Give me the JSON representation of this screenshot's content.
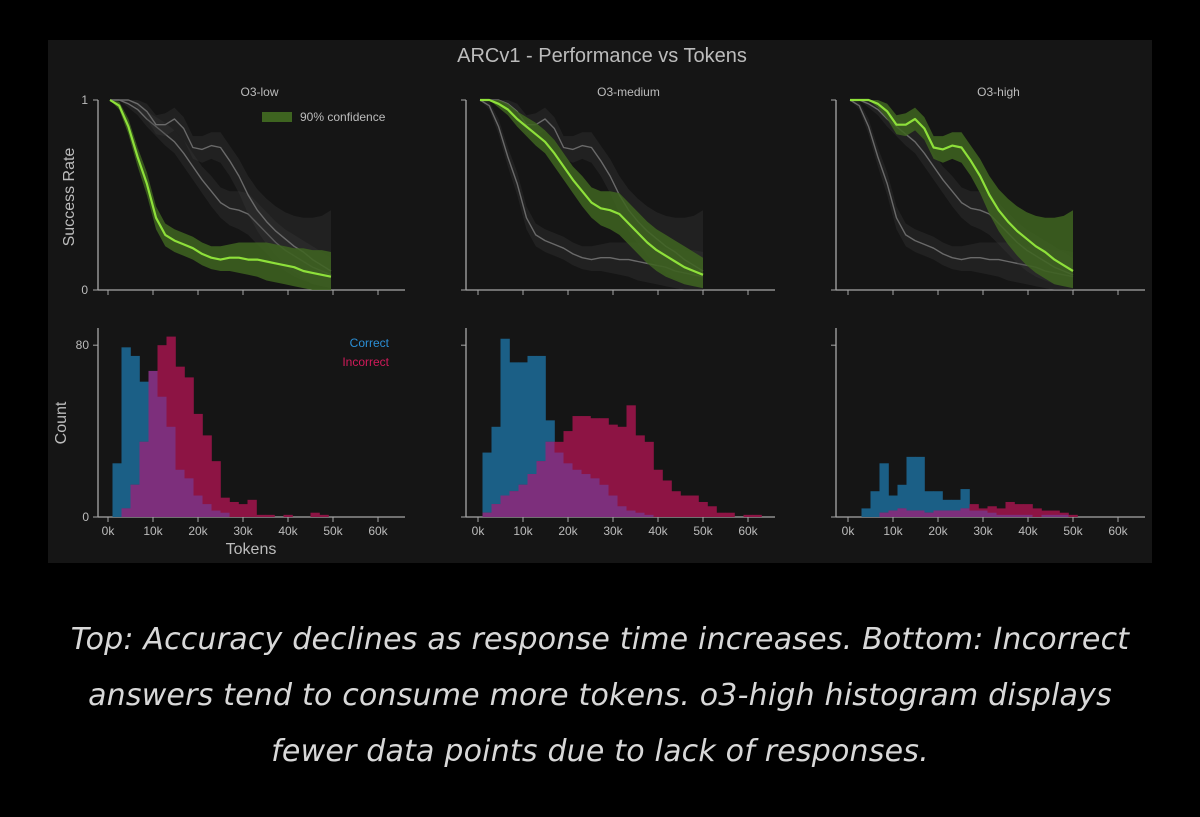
{
  "figure": {
    "title": "ARCv1 - Performance vs Tokens",
    "top_ylabel": "Success Rate",
    "bottom_ylabel": "Count",
    "bottom_xlabel": "Tokens"
  },
  "caption": [
    "Top: Accuracy declines as response time increases. Bottom: Incorrect",
    "answers tend to consume more tokens. o3-high histogram displays",
    "fewer data points due to lack of responses."
  ],
  "colors": {
    "background": "#151515",
    "axis": "#a8a8a8",
    "text": "#bcbcbc",
    "highlight_line": "#8ee03a",
    "confidence_band": "#3e6420",
    "other_line": "#6a6a6a",
    "correct": "#1b5f86",
    "incorrect": "#8d1444",
    "overlap": "#7d2f7c",
    "correct_label": "#2b8fd6",
    "incorrect_label": "#d11a5a"
  },
  "chart_data": [
    {
      "type": "line",
      "panel": "O3-low",
      "title": "O3-low",
      "ylabel": "Success Rate",
      "xlim": [
        0,
        65000
      ],
      "ylim": [
        0,
        1
      ],
      "yticks": [
        "0",
        "1"
      ],
      "legend": {
        "label": "90% confidence",
        "position": "top-right"
      },
      "highlight": "O3-low",
      "series": [
        {
          "name": "O3-low",
          "x": [
            2000,
            4000,
            6000,
            8000,
            10000,
            12000,
            14000,
            16000,
            18000,
            20000,
            22000,
            24000,
            26000,
            28000,
            30000,
            32000,
            34000,
            36000,
            38000,
            40000,
            42000,
            44000,
            46000,
            48000,
            50000
          ],
          "values": [
            1.0,
            0.97,
            0.86,
            0.7,
            0.56,
            0.38,
            0.29,
            0.26,
            0.24,
            0.22,
            0.19,
            0.17,
            0.16,
            0.17,
            0.17,
            0.16,
            0.16,
            0.15,
            0.14,
            0.13,
            0.12,
            0.1,
            0.09,
            0.08,
            0.07
          ],
          "lower": [
            1.0,
            0.95,
            0.82,
            0.65,
            0.5,
            0.32,
            0.23,
            0.2,
            0.18,
            0.16,
            0.13,
            0.11,
            0.1,
            0.1,
            0.09,
            0.08,
            0.07,
            0.05,
            0.04,
            0.03,
            0.02,
            0.01,
            0.0,
            0.0,
            0.0
          ],
          "upper": [
            1.0,
            0.99,
            0.9,
            0.75,
            0.62,
            0.44,
            0.35,
            0.32,
            0.3,
            0.28,
            0.25,
            0.23,
            0.23,
            0.24,
            0.25,
            0.25,
            0.25,
            0.25,
            0.24,
            0.23,
            0.22,
            0.22,
            0.21,
            0.21,
            0.2
          ]
        },
        {
          "name": "O3-medium",
          "x": [
            2000,
            4000,
            6000,
            8000,
            10000,
            12000,
            14000,
            16000,
            18000,
            20000,
            22000,
            24000,
            26000,
            28000,
            30000,
            32000,
            34000,
            36000,
            38000,
            40000,
            42000,
            44000,
            46000,
            48000,
            50000
          ],
          "values": [
            1.0,
            1.0,
            0.98,
            0.95,
            0.9,
            0.86,
            0.82,
            0.78,
            0.72,
            0.65,
            0.58,
            0.52,
            0.46,
            0.43,
            0.42,
            0.4,
            0.35,
            0.3,
            0.25,
            0.21,
            0.18,
            0.15,
            0.12,
            0.1,
            0.08
          ],
          "lower": [
            1.0,
            1.0,
            0.96,
            0.92,
            0.86,
            0.81,
            0.76,
            0.72,
            0.65,
            0.58,
            0.51,
            0.44,
            0.38,
            0.34,
            0.32,
            0.29,
            0.24,
            0.19,
            0.14,
            0.1,
            0.07,
            0.05,
            0.03,
            0.02,
            0.01
          ],
          "upper": [
            1.0,
            1.0,
            1.0,
            0.98,
            0.94,
            0.91,
            0.88,
            0.84,
            0.79,
            0.72,
            0.65,
            0.6,
            0.54,
            0.52,
            0.52,
            0.51,
            0.46,
            0.41,
            0.36,
            0.32,
            0.29,
            0.26,
            0.23,
            0.2,
            0.17
          ]
        },
        {
          "name": "O3-high",
          "x": [
            2000,
            4000,
            6000,
            8000,
            10000,
            12000,
            14000,
            16000,
            18000,
            20000,
            22000,
            24000,
            26000,
            28000,
            30000,
            32000,
            34000,
            36000,
            38000,
            40000,
            42000,
            44000,
            46000,
            48000,
            50000
          ],
          "values": [
            1.0,
            1.0,
            1.0,
            0.98,
            0.94,
            0.87,
            0.87,
            0.9,
            0.85,
            0.75,
            0.74,
            0.76,
            0.75,
            0.68,
            0.6,
            0.5,
            0.42,
            0.36,
            0.31,
            0.27,
            0.23,
            0.2,
            0.16,
            0.13,
            0.1
          ],
          "lower": [
            1.0,
            1.0,
            1.0,
            0.96,
            0.9,
            0.82,
            0.81,
            0.84,
            0.79,
            0.69,
            0.67,
            0.69,
            0.67,
            0.6,
            0.51,
            0.4,
            0.31,
            0.24,
            0.18,
            0.13,
            0.09,
            0.06,
            0.03,
            0.02,
            0.01
          ],
          "upper": [
            1.0,
            1.0,
            1.0,
            1.0,
            0.98,
            0.92,
            0.93,
            0.96,
            0.91,
            0.81,
            0.81,
            0.83,
            0.83,
            0.76,
            0.69,
            0.6,
            0.53,
            0.48,
            0.44,
            0.41,
            0.39,
            0.38,
            0.38,
            0.39,
            0.42
          ]
        }
      ]
    },
    {
      "type": "line",
      "panel": "O3-medium",
      "title": "O3-medium",
      "xlim": [
        0,
        65000
      ],
      "ylim": [
        0,
        1
      ],
      "highlight": "O3-medium"
    },
    {
      "type": "line",
      "panel": "O3-high",
      "title": "O3-high",
      "xlim": [
        0,
        65000
      ],
      "ylim": [
        0,
        1
      ],
      "highlight": "O3-high"
    },
    {
      "type": "bar",
      "panel": "O3-low",
      "ylabel": "Count",
      "xlabel": "Tokens",
      "xlim": [
        -2000,
        67000
      ],
      "ylim": [
        0,
        88
      ],
      "xticks": [
        "0k",
        "10k",
        "20k",
        "30k",
        "40k",
        "50k",
        "60k"
      ],
      "yticks": [
        "0",
        "80"
      ],
      "legend": {
        "entries": [
          "Correct",
          "Incorrect"
        ],
        "position": "top-right"
      },
      "bin_width": 2000,
      "bin_starts": [
        1000,
        3000,
        5000,
        7000,
        9000,
        11000,
        13000,
        15000,
        17000,
        19000,
        21000,
        23000,
        25000,
        27000,
        29000,
        31000,
        33000,
        35000,
        37000,
        39000,
        41000,
        43000,
        45000,
        47000,
        49000
      ],
      "series": [
        {
          "name": "Correct",
          "values": [
            25,
            79,
            75,
            63,
            68,
            56,
            42,
            22,
            18,
            10,
            6,
            3,
            2,
            0,
            0,
            0,
            0,
            0,
            0,
            0,
            0,
            0,
            0,
            0,
            0
          ]
        },
        {
          "name": "Incorrect",
          "values": [
            0,
            4,
            15,
            35,
            68,
            80,
            84,
            70,
            65,
            48,
            38,
            26,
            9,
            7,
            6,
            8,
            1,
            1,
            0,
            1,
            0,
            0,
            2,
            1,
            0
          ]
        }
      ]
    },
    {
      "type": "bar",
      "panel": "O3-medium",
      "xlim": [
        -2000,
        67000
      ],
      "ylim": [
        0,
        88
      ],
      "xticks": [
        "0k",
        "10k",
        "20k",
        "30k",
        "40k",
        "50k",
        "60k"
      ],
      "bin_width": 2000,
      "bin_starts": [
        1000,
        3000,
        5000,
        7000,
        9000,
        11000,
        13000,
        15000,
        17000,
        19000,
        21000,
        23000,
        25000,
        27000,
        29000,
        31000,
        33000,
        35000,
        37000,
        39000,
        41000,
        43000,
        45000,
        47000,
        49000,
        51000,
        53000,
        55000,
        57000,
        59000,
        61000
      ],
      "series": [
        {
          "name": "Correct",
          "values": [
            30,
            42,
            83,
            72,
            72,
            75,
            75,
            45,
            30,
            25,
            22,
            20,
            18,
            15,
            10,
            5,
            3,
            2,
            1,
            0,
            0,
            0,
            0,
            0,
            0,
            0,
            0,
            0,
            0,
            0,
            0
          ]
        },
        {
          "name": "Incorrect",
          "values": [
            2,
            6,
            10,
            12,
            15,
            20,
            26,
            35,
            35,
            40,
            47,
            47,
            46,
            46,
            43,
            42,
            52,
            38,
            35,
            22,
            17,
            12,
            10,
            10,
            7,
            5,
            2,
            2,
            0,
            1,
            1
          ]
        }
      ]
    },
    {
      "type": "bar",
      "panel": "O3-high",
      "xlim": [
        -2000,
        67000
      ],
      "ylim": [
        0,
        88
      ],
      "xticks": [
        "0k",
        "10k",
        "20k",
        "30k",
        "40k",
        "50k",
        "60k"
      ],
      "bin_width": 2000,
      "bin_starts": [
        1000,
        3000,
        5000,
        7000,
        9000,
        11000,
        13000,
        15000,
        17000,
        19000,
        21000,
        23000,
        25000,
        27000,
        29000,
        31000,
        33000,
        35000,
        37000,
        39000,
        41000,
        43000,
        45000,
        47000,
        49000
      ],
      "series": [
        {
          "name": "Correct",
          "values": [
            0,
            4,
            12,
            25,
            10,
            15,
            28,
            28,
            12,
            12,
            8,
            8,
            13,
            3,
            3,
            2,
            1,
            1,
            1,
            1,
            0,
            1,
            1,
            1,
            0
          ]
        },
        {
          "name": "Incorrect",
          "values": [
            0,
            0,
            0,
            2,
            3,
            4,
            3,
            3,
            2,
            3,
            3,
            3,
            4,
            6,
            4,
            5,
            4,
            7,
            6,
            6,
            4,
            3,
            3,
            2,
            1
          ]
        }
      ]
    }
  ]
}
